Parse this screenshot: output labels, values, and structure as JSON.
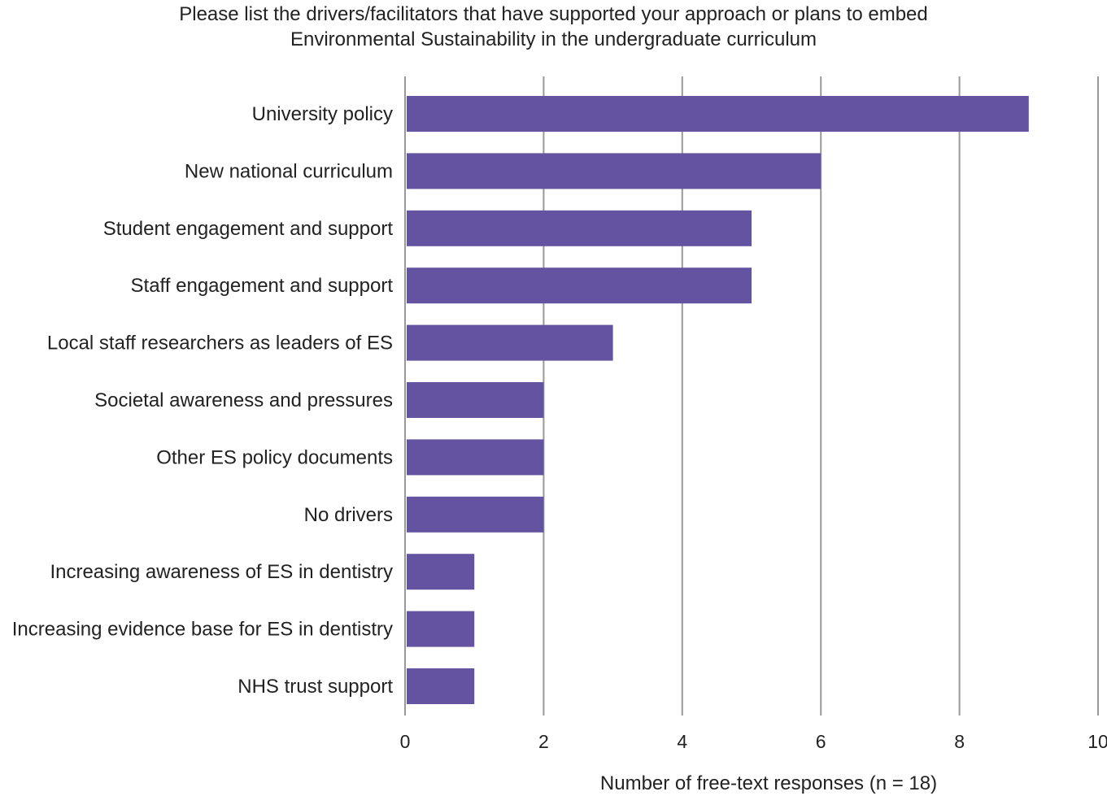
{
  "chart_data": {
    "type": "bar",
    "orientation": "horizontal",
    "title_lines": [
      "Please list the drivers/facilitators that have supported your approach or plans to embed",
      "Environmental Sustainability in the undergraduate curriculum"
    ],
    "xlabel": "Number of free-text responses (n = 18)",
    "ylabel": "",
    "categories": [
      "University policy",
      "New national curriculum",
      "Student engagement and support",
      "Staff engagement and support",
      "Local staff researchers as leaders of ES",
      "Societal awareness and pressures",
      "Other ES policy documents",
      "No drivers",
      "Increasing awareness of ES in dentistry",
      "Increasing evidence base for ES in dentistry",
      "NHS trust support"
    ],
    "values": [
      9,
      6,
      5,
      5,
      3,
      2,
      2,
      2,
      1,
      1,
      1
    ],
    "xlim": [
      0,
      10
    ],
    "xticks": [
      "0",
      "2",
      "4",
      "6",
      "8",
      "10"
    ],
    "grid": true,
    "legend": "none",
    "bar_color": "#6453a0",
    "grid_color": "#999999"
  }
}
